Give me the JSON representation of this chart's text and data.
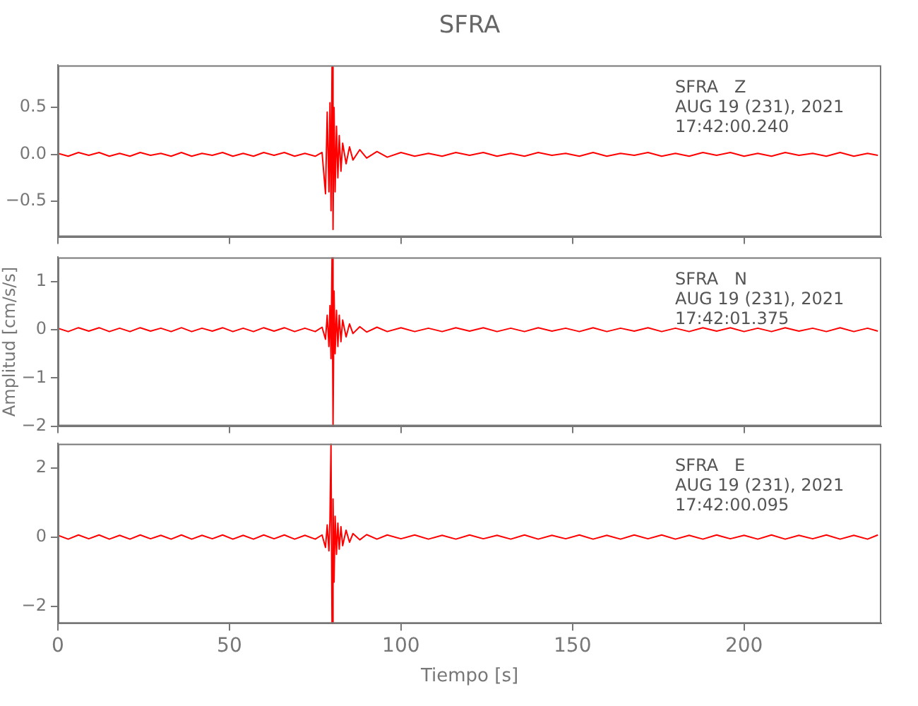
{
  "chart_data": [
    {
      "type": "line",
      "title": "SFRA",
      "color": "#ff0000",
      "xlim": [
        0,
        240
      ],
      "xticks": [
        0,
        50,
        100,
        150,
        200
      ],
      "ylim": [
        -0.88,
        0.95
      ],
      "yticks": [
        {
          "value": -0.5,
          "label": "−0.5"
        },
        {
          "value": 0,
          "label": "0.0"
        },
        {
          "value": 0.5,
          "label": "0.5"
        }
      ],
      "tick_labels": "y",
      "grid": false,
      "annotations": [
        "SFRA   Z",
        "AUG 19 (231), 2021",
        "17:42:00.240"
      ],
      "x": [
        0,
        3,
        6,
        9,
        12,
        15,
        18,
        21,
        24,
        27,
        30,
        33,
        36,
        39,
        42,
        45,
        48,
        51,
        54,
        57,
        60,
        63,
        66,
        69,
        72,
        75,
        77,
        78,
        78.5,
        79,
        79.3,
        79.6,
        79.9,
        80.2,
        80.5,
        80.8,
        81.2,
        81.6,
        82,
        82.5,
        83,
        84,
        85,
        86,
        88,
        90,
        93,
        96,
        100,
        104,
        108,
        112,
        116,
        120,
        124,
        128,
        132,
        136,
        140,
        144,
        148,
        152,
        156,
        160,
        164,
        168,
        172,
        176,
        180,
        184,
        188,
        192,
        196,
        200,
        204,
        208,
        212,
        216,
        220,
        224,
        228,
        232,
        236,
        239
      ],
      "values": [
        0.01,
        -0.02,
        0.02,
        -0.01,
        0.02,
        -0.02,
        0.01,
        -0.02,
        0.02,
        -0.01,
        0.01,
        -0.02,
        0.02,
        -0.02,
        0.01,
        -0.01,
        0.02,
        -0.02,
        0.01,
        -0.02,
        0.02,
        -0.01,
        0.02,
        -0.02,
        0.01,
        -0.02,
        0.02,
        -0.42,
        0.45,
        -0.4,
        0.55,
        -0.6,
        0.93,
        -0.8,
        0.5,
        -0.4,
        0.3,
        -0.25,
        0.2,
        -0.18,
        0.12,
        -0.1,
        0.08,
        -0.06,
        0.05,
        -0.04,
        0.03,
        -0.03,
        0.02,
        -0.02,
        0.01,
        -0.02,
        0.02,
        -0.01,
        0.02,
        -0.02,
        0.01,
        -0.02,
        0.02,
        -0.01,
        0.01,
        -0.02,
        0.02,
        -0.02,
        0.01,
        -0.01,
        0.02,
        -0.02,
        0.01,
        -0.02,
        0.02,
        -0.01,
        0.02,
        -0.02,
        0.01,
        -0.02,
        0.02,
        -0.01,
        0.01,
        -0.02,
        0.02,
        -0.02,
        0.01,
        -0.01
      ]
    },
    {
      "type": "line",
      "ylabel": "Amplitud [cm/s/s]",
      "color": "#ff0000",
      "xlim": [
        0,
        240
      ],
      "xticks": [
        0,
        50,
        100,
        150,
        200
      ],
      "ylim": [
        -2.0,
        1.5
      ],
      "yticks": [
        {
          "value": -2,
          "label": "−2"
        },
        {
          "value": -1,
          "label": "−1"
        },
        0,
        1
      ],
      "tick_labels": "y",
      "grid": false,
      "annotations": [
        "SFRA   N",
        "AUG 19 (231), 2021",
        "17:42:01.375"
      ],
      "x": [
        0,
        3,
        6,
        9,
        12,
        15,
        18,
        21,
        24,
        27,
        30,
        33,
        36,
        39,
        42,
        45,
        48,
        51,
        54,
        57,
        60,
        63,
        66,
        69,
        72,
        75,
        77,
        78,
        78.5,
        79,
        79.3,
        79.6,
        79.9,
        80.2,
        80.5,
        80.8,
        81.2,
        81.6,
        82,
        82.5,
        83,
        84,
        85,
        86,
        88,
        90,
        93,
        96,
        100,
        104,
        108,
        112,
        116,
        120,
        124,
        128,
        132,
        136,
        140,
        144,
        148,
        152,
        156,
        160,
        164,
        168,
        172,
        176,
        180,
        184,
        188,
        192,
        196,
        200,
        204,
        208,
        212,
        216,
        220,
        224,
        228,
        232,
        236,
        239
      ],
      "values": [
        0.03,
        -0.04,
        0.04,
        -0.03,
        0.04,
        -0.04,
        0.03,
        -0.04,
        0.04,
        -0.03,
        0.03,
        -0.04,
        0.04,
        -0.04,
        0.03,
        -0.03,
        0.04,
        -0.04,
        0.03,
        -0.04,
        0.04,
        -0.03,
        0.04,
        -0.04,
        0.03,
        -0.04,
        0.05,
        -0.2,
        0.3,
        -0.35,
        0.5,
        -0.6,
        1.5,
        -2.0,
        0.8,
        -0.5,
        0.4,
        -0.35,
        0.3,
        -0.25,
        0.2,
        -0.15,
        0.12,
        -0.08,
        0.06,
        -0.05,
        0.05,
        -0.04,
        0.04,
        -0.04,
        0.03,
        -0.04,
        0.04,
        -0.03,
        0.04,
        -0.04,
        0.03,
        -0.04,
        0.04,
        -0.03,
        0.03,
        -0.04,
        0.04,
        -0.04,
        0.03,
        -0.03,
        0.04,
        -0.04,
        0.03,
        -0.04,
        0.04,
        -0.03,
        0.04,
        -0.04,
        0.03,
        -0.04,
        0.04,
        -0.03,
        0.03,
        -0.04,
        0.04,
        -0.04,
        0.03,
        -0.03
      ]
    },
    {
      "type": "line",
      "xlabel": "Tiempo [s]",
      "color": "#ff0000",
      "xlim": [
        0,
        240
      ],
      "xticks": [
        0,
        50,
        100,
        150,
        200
      ],
      "ylim": [
        -2.5,
        2.7
      ],
      "yticks": [
        {
          "value": -2,
          "label": "−2"
        },
        0,
        2
      ],
      "grid": false,
      "annotations": [
        "SFRA   E",
        "AUG 19 (231), 2021",
        "17:42:00.095"
      ],
      "x": [
        0,
        3,
        6,
        9,
        12,
        15,
        18,
        21,
        24,
        27,
        30,
        33,
        36,
        39,
        42,
        45,
        48,
        51,
        54,
        57,
        60,
        63,
        66,
        69,
        72,
        75,
        77,
        78,
        78.5,
        79,
        79.3,
        79.6,
        79.9,
        80.2,
        80.5,
        80.8,
        81.2,
        81.6,
        82,
        82.5,
        83,
        84,
        85,
        86,
        88,
        90,
        93,
        96,
        100,
        104,
        108,
        112,
        116,
        120,
        124,
        128,
        132,
        136,
        140,
        144,
        148,
        152,
        156,
        160,
        164,
        168,
        172,
        176,
        180,
        184,
        188,
        192,
        196,
        200,
        204,
        208,
        212,
        216,
        220,
        224,
        228,
        232,
        236,
        239
      ],
      "values": [
        0.05,
        -0.06,
        0.06,
        -0.05,
        0.06,
        -0.06,
        0.05,
        -0.06,
        0.06,
        -0.05,
        0.05,
        -0.06,
        0.06,
        -0.06,
        0.05,
        -0.05,
        0.06,
        -0.06,
        0.05,
        -0.06,
        0.06,
        -0.05,
        0.06,
        -0.06,
        0.05,
        -0.06,
        0.06,
        -0.3,
        0.35,
        -0.4,
        0.5,
        2.7,
        -2.5,
        1.1,
        -1.3,
        0.6,
        -0.5,
        0.4,
        -0.35,
        0.3,
        -0.25,
        0.2,
        -0.15,
        0.1,
        -0.08,
        0.07,
        -0.06,
        0.06,
        -0.05,
        0.06,
        -0.06,
        0.05,
        -0.06,
        0.06,
        -0.05,
        0.05,
        -0.06,
        0.06,
        -0.06,
        0.05,
        -0.05,
        0.06,
        -0.06,
        0.05,
        -0.06,
        0.06,
        -0.05,
        0.06,
        -0.06,
        0.05,
        -0.06,
        0.06,
        -0.05,
        0.05,
        -0.06,
        0.06,
        -0.06,
        0.05,
        -0.05,
        0.06,
        -0.06,
        0.05,
        -0.06,
        0.06
      ]
    }
  ]
}
